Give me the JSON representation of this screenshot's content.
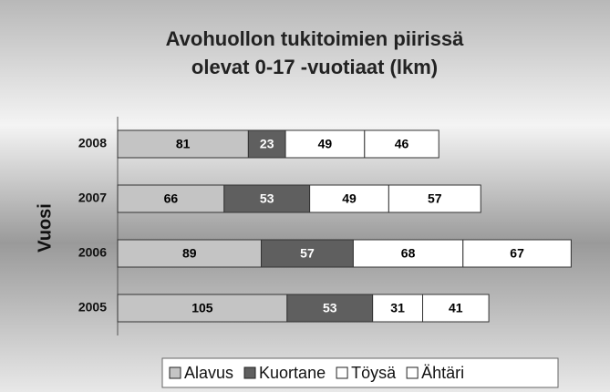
{
  "chart_data": {
    "type": "stacked-bar-horizontal",
    "title": [
      "Avohuollon tukitoimien piirissä",
      "olevat 0-17 -vuotiaat (lkm)"
    ],
    "y_label": "Vuosi",
    "categories": [
      "2005",
      "2006",
      "2007",
      "2008"
    ],
    "series": [
      {
        "name": "Alavus",
        "color": "#c4c4c4",
        "label_color": "#000000",
        "values": [
          105,
          89,
          66,
          81
        ]
      },
      {
        "name": "Kuortane",
        "color": "#5f5f5f",
        "label_color": "#ffffff",
        "values": [
          53,
          57,
          53,
          23
        ]
      },
      {
        "name": "Töysä",
        "color": "#ffffff",
        "label_color": "#000000",
        "values": [
          31,
          68,
          49,
          49
        ]
      },
      {
        "name": "Ähtäri",
        "color": "#ffffff",
        "label_color": "#000000",
        "values": [
          41,
          67,
          57,
          46
        ]
      }
    ],
    "xlim": [
      0,
      300
    ],
    "legend": "bottom"
  }
}
